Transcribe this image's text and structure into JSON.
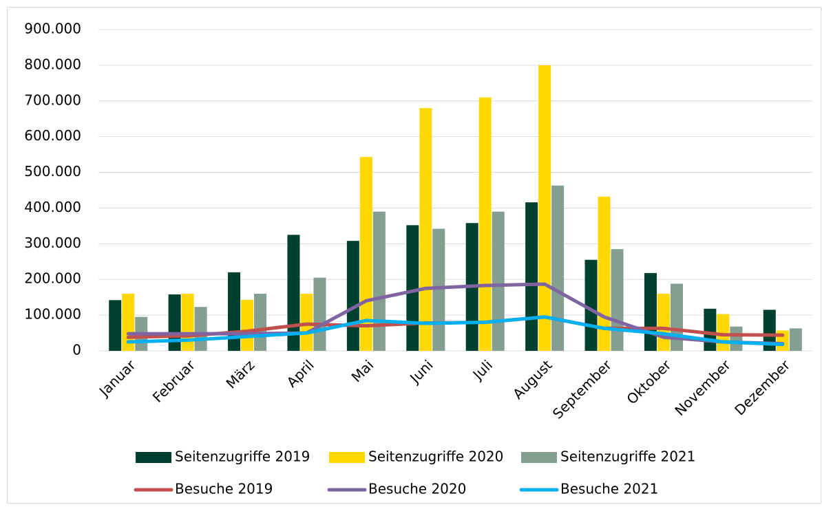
{
  "chart_data": {
    "type": "bar_line",
    "categories": [
      "Januar",
      "Februar",
      "März",
      "April",
      "Mai",
      "Juni",
      "Juli",
      "August",
      "September",
      "Oktober",
      "November",
      "Dezember"
    ],
    "series": [
      {
        "name": "Seitenzugriffe 2019",
        "type": "bar",
        "color": "#00402f",
        "values": [
          142000,
          158000,
          220000,
          325000,
          308000,
          352000,
          358000,
          416000,
          255000,
          218000,
          118000,
          115000
        ]
      },
      {
        "name": "Seitenzugriffe 2020",
        "type": "bar",
        "color": "#ffd800",
        "values": [
          160000,
          160000,
          143000,
          160000,
          543000,
          680000,
          710000,
          800000,
          432000,
          160000,
          103000,
          57000
        ]
      },
      {
        "name": "Seitenzugriffe 2021",
        "type": "bar",
        "color": "#849e92",
        "values": [
          95000,
          123000,
          160000,
          205000,
          390000,
          342000,
          390000,
          463000,
          285000,
          188000,
          68000,
          63000
        ]
      },
      {
        "name": "Besuche 2019",
        "type": "line",
        "color": "#c0504d",
        "values": [
          38000,
          42000,
          55000,
          75000,
          70000,
          78000,
          80000,
          95000,
          63000,
          63000,
          45000,
          44000
        ]
      },
      {
        "name": "Besuche 2020",
        "type": "line",
        "color": "#8064a2",
        "values": [
          48000,
          48000,
          48000,
          50000,
          140000,
          175000,
          183000,
          187000,
          95000,
          38000,
          25000,
          20000
        ]
      },
      {
        "name": "Besuche 2021",
        "type": "line",
        "color": "#00b0f0",
        "values": [
          25000,
          30000,
          40000,
          50000,
          85000,
          77000,
          80000,
          95000,
          63000,
          48000,
          25000,
          18000
        ]
      }
    ],
    "ylim": [
      0,
      900000
    ],
    "yticks": [
      0,
      {
        "value": 100000,
        "label": "100.000"
      },
      {
        "value": 200000,
        "label": "200.000"
      },
      {
        "value": 300000,
        "label": "300.000"
      },
      {
        "value": 400000,
        "label": "400.000"
      },
      {
        "value": 500000,
        "label": "500.000"
      },
      {
        "value": 600000,
        "label": "600.000"
      },
      {
        "value": 700000,
        "label": "700.000"
      },
      {
        "value": 800000,
        "label": "800.000"
      },
      {
        "value": 900000,
        "label": "900.000"
      }
    ],
    "grid": true,
    "legend": "bottom"
  }
}
